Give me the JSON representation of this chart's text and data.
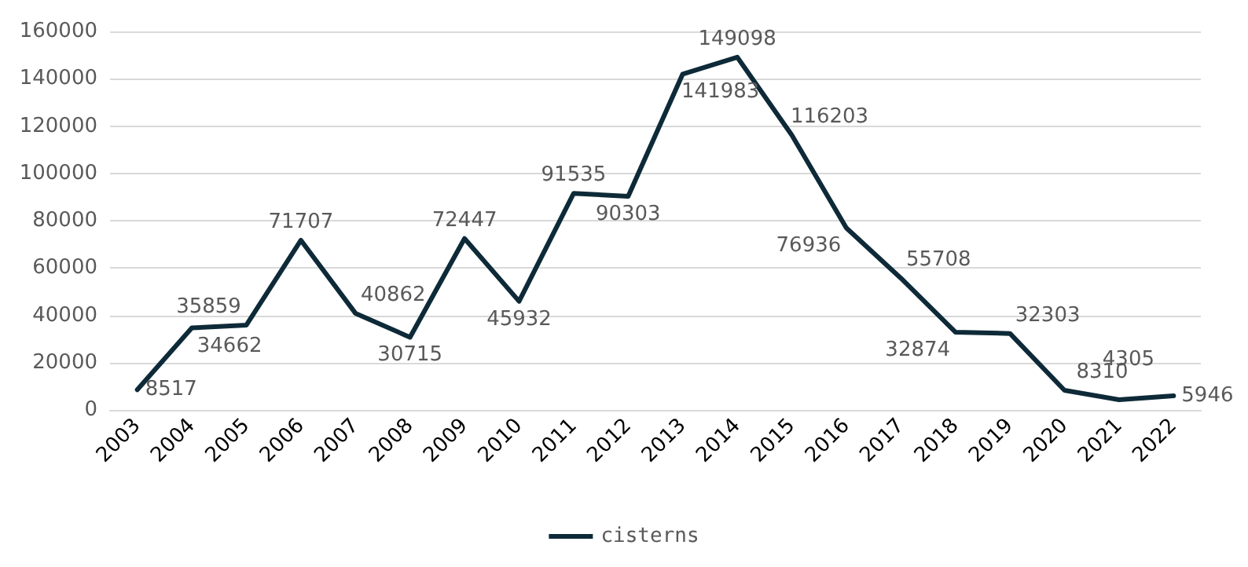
{
  "chart_data": {
    "type": "line",
    "categories": [
      "2003",
      "2004",
      "2005",
      "2006",
      "2007",
      "2008",
      "2009",
      "2010",
      "2011",
      "2012",
      "2013",
      "2014",
      "2015",
      "2016",
      "2017",
      "2018",
      "2019",
      "2020",
      "2021",
      "2022"
    ],
    "series": [
      {
        "name": "cisterns",
        "color": "#0e2a38",
        "values": [
          8517,
          34662,
          35859,
          71707,
          40862,
          30715,
          72447,
          45932,
          91535,
          90303,
          141983,
          149098,
          116203,
          76936,
          55708,
          32874,
          32303,
          8310,
          4305,
          5946
        ]
      }
    ],
    "ylim": [
      0,
      160000
    ],
    "yticks": [
      0,
      20000,
      40000,
      60000,
      80000,
      100000,
      120000,
      140000,
      160000
    ],
    "grid": "y",
    "legend": "bottom",
    "data_labels": true,
    "marker": "none",
    "line_style": "solid"
  }
}
